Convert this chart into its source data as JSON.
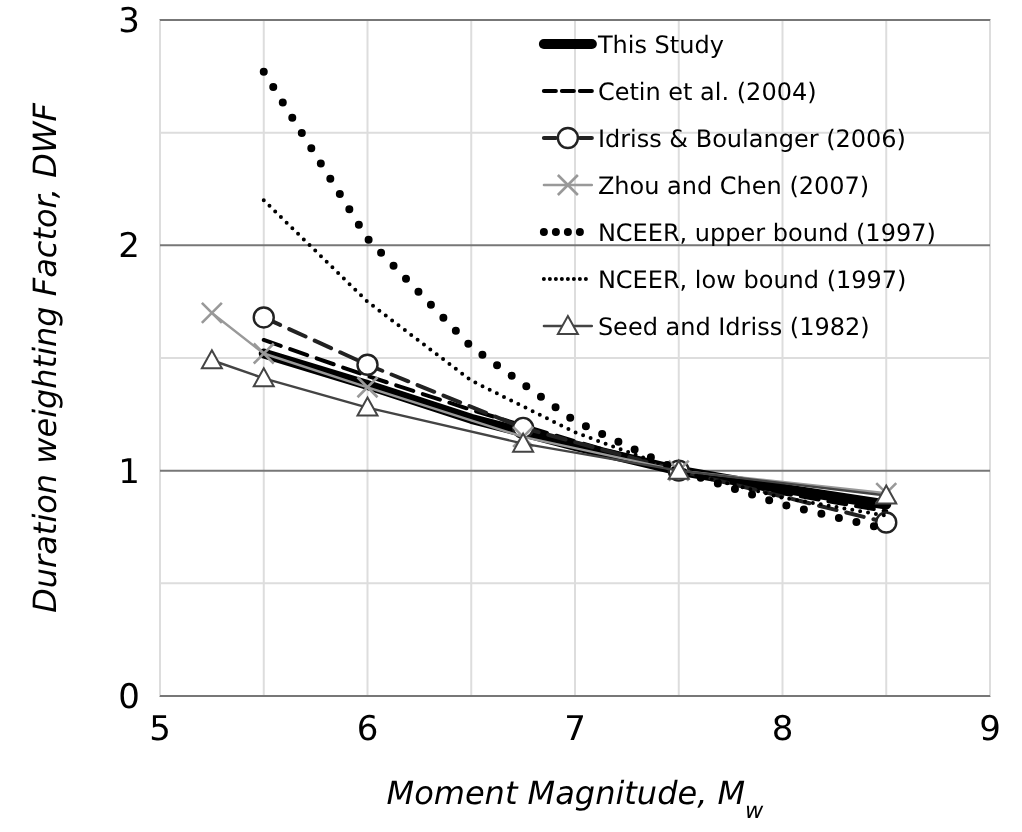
{
  "chart_data": {
    "type": "line",
    "xlabel": "Moment Magnitude, M$_{w}$",
    "ylabel": "Duration weighting Factor, DWF",
    "xlim": [
      5,
      9
    ],
    "ylim": [
      0,
      3
    ],
    "xticks": [
      5,
      {
        "value": 5.5,
        "label": null
      },
      6,
      {
        "value": 6.5,
        "label": null
      },
      7,
      {
        "value": 7.5,
        "label": null
      },
      8,
      {
        "value": 8.5,
        "label": null
      },
      9
    ],
    "yticks": [
      0,
      {
        "value": 0.5,
        "label": null
      },
      1,
      {
        "value": 1.5,
        "label": null
      },
      2,
      {
        "value": 2.5,
        "label": null
      },
      3
    ],
    "grid": true,
    "legend": "top right",
    "series": [
      {
        "name": "This Study",
        "color": "#000000",
        "line_style": "solid",
        "marker": "none",
        "x": [
          5.5,
          6,
          6.5,
          7,
          7.5,
          8,
          8.5
        ],
        "values": [
          1.52,
          1.38,
          1.23,
          1.11,
          1.0,
          0.92,
          0.85
        ]
      },
      {
        "name": "Cetin et al. (2004)",
        "color": "#000000",
        "line_style": "dashed",
        "marker": "none",
        "x": [
          5.5,
          6,
          6.5,
          7,
          7.5,
          8,
          8.5
        ],
        "values": [
          1.58,
          1.42,
          1.27,
          1.13,
          1.0,
          0.9,
          0.82
        ]
      },
      {
        "name": "Idriss & Boulanger (2006)",
        "color": "#222222",
        "line_style": "dashed",
        "marker": "circle",
        "x": [
          5.5,
          6,
          6.75,
          7.5,
          8.5
        ],
        "values": [
          1.68,
          1.47,
          1.19,
          1.0,
          0.77
        ]
      },
      {
        "name": "Zhou and Chen (2007)",
        "color": "#999999",
        "line_style": "solid",
        "marker": "cross",
        "x": [
          5.25,
          5.5,
          6,
          6.75,
          7.5,
          8.5
        ],
        "values": [
          1.7,
          1.52,
          1.37,
          1.15,
          1.0,
          0.9
        ]
      },
      {
        "name": "NCEER, upper bound (1997)",
        "color": "#000000",
        "line_style": "dotted",
        "marker": "none",
        "x": [
          5.5,
          6,
          6.5,
          7,
          7.5,
          8,
          8.5
        ],
        "values": [
          2.77,
          2.03,
          1.55,
          1.22,
          1.0,
          0.85,
          0.74
        ]
      },
      {
        "name": "NCEER, low bound (1997)",
        "color": "#000000",
        "line_style": "dotted",
        "marker": "none",
        "x": [
          5.5,
          6,
          6.5,
          7,
          7.5,
          8,
          8.5
        ],
        "values": [
          2.2,
          1.75,
          1.4,
          1.17,
          1.0,
          0.88,
          0.8
        ]
      },
      {
        "name": "Seed and Idriss (1982)",
        "color": "#444444",
        "line_style": "solid",
        "marker": "triangle",
        "x": [
          5.25,
          5.5,
          6,
          6.75,
          7.5,
          8.5
        ],
        "values": [
          1.49,
          1.41,
          1.28,
          1.12,
          1.0,
          0.89
        ]
      }
    ]
  }
}
